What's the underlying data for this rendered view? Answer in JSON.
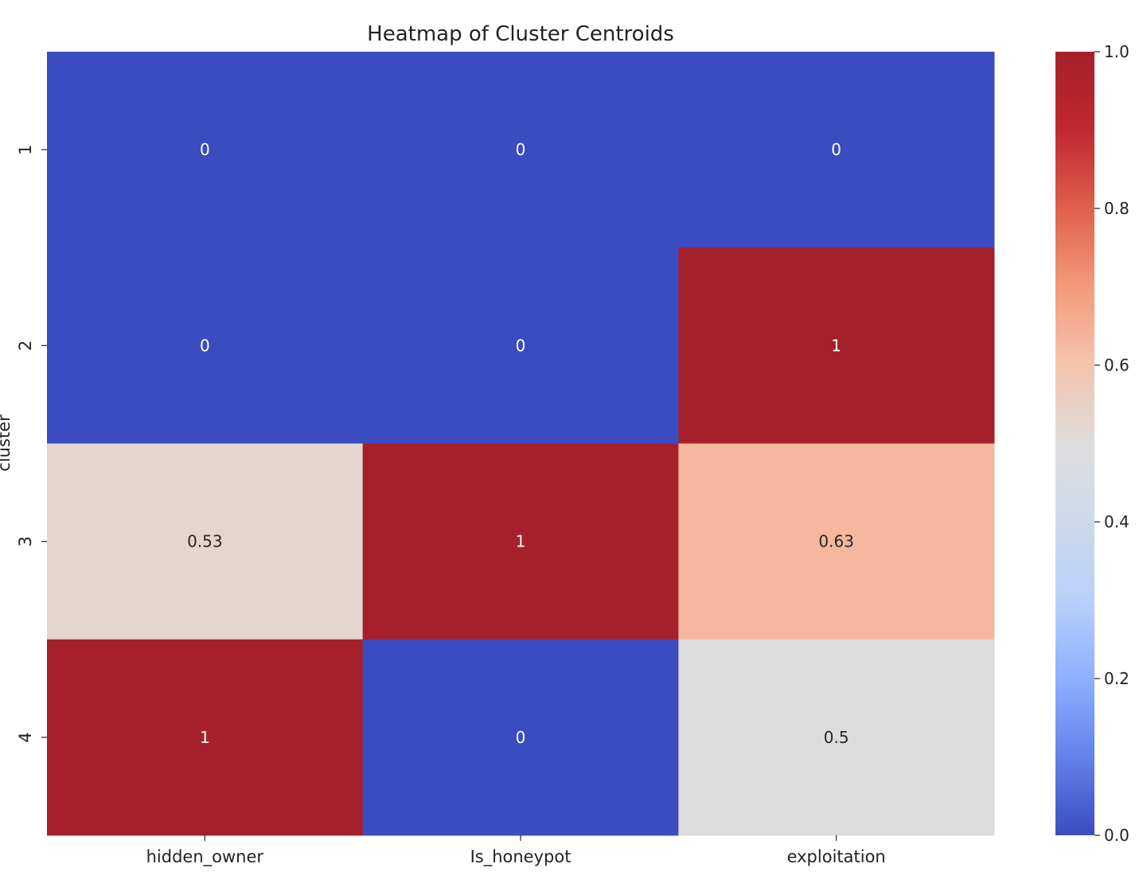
{
  "chart_data": {
    "type": "heatmap",
    "title": "Heatmap of Cluster Centroids",
    "xlabel": "",
    "ylabel": "cluster",
    "x_categories": [
      "hidden_owner",
      "Is_honeypot",
      "exploitation"
    ],
    "y_categories": [
      "1",
      "2",
      "3",
      "4"
    ],
    "values": [
      [
        0,
        0,
        0
      ],
      [
        0,
        0,
        1
      ],
      [
        0.53,
        1,
        0.63
      ],
      [
        1,
        0,
        0.5
      ]
    ],
    "annotations": [
      [
        "0",
        "0",
        "0"
      ],
      [
        "0",
        "0",
        "1"
      ],
      [
        "0.53",
        "1",
        "0.63"
      ],
      [
        "1",
        "0",
        "0.5"
      ]
    ],
    "colormap": "coolwarm",
    "vmin": 0,
    "vmax": 1,
    "colorbar_ticks": [
      0.0,
      0.2,
      0.4,
      0.6,
      0.8,
      1.0
    ],
    "colorbar_tick_labels": [
      "0.0",
      "0.2",
      "0.4",
      "0.6",
      "0.8",
      "1.0"
    ],
    "colorbar_position": "right",
    "grid": false
  }
}
